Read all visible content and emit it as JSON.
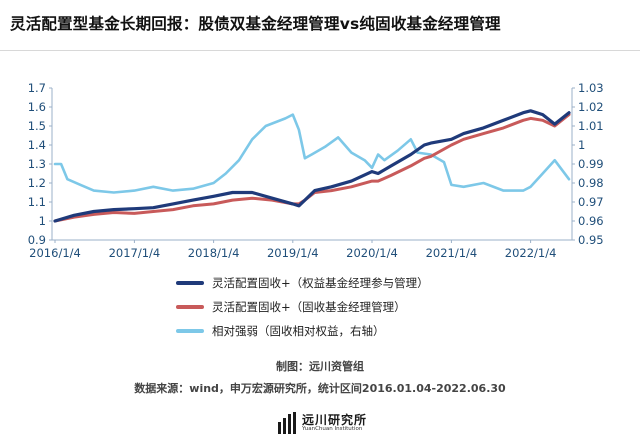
{
  "title": "灵活配置型基金长期回报：股债双基金经理管理vs纯固收基金经理管理",
  "credits": {
    "made_by": "制图：远川资管组",
    "source": "数据来源：wind，申万宏源研究所，统计区间2016.01.04-2022.06.30"
  },
  "logo": {
    "cn": "远川研究所",
    "en": "YuanChuan Institution"
  },
  "colors": {
    "series1": "#1f3a7a",
    "series2": "#c85a5a",
    "series3": "#7dc8e8",
    "axis": "#1f4e79"
  },
  "chart_data": {
    "type": "line",
    "x_ticks": [
      "2016/1/4",
      "2017/1/4",
      "2018/1/4",
      "2019/1/4",
      "2020/1/4",
      "2021/1/4",
      "2022/1/4"
    ],
    "x_range": [
      "2016-01-04",
      "2022-06-30"
    ],
    "y_left": {
      "ticks": [
        "0.9",
        "1",
        "1.1",
        "1.2",
        "1.3",
        "1.4",
        "1.5",
        "1.6",
        "1.7"
      ],
      "range": [
        0.9,
        1.7
      ]
    },
    "y_right": {
      "ticks": [
        "0.95",
        "0.96",
        "0.97",
        "0.98",
        "0.99",
        "1",
        "1.01",
        "1.02",
        "1.03"
      ],
      "range": [
        0.95,
        1.03
      ]
    },
    "grid": false,
    "legend_position": "bottom",
    "series": [
      {
        "name": "灵活配置固收+（权益基金经理参与管理）",
        "axis": "left",
        "points": [
          [
            "2016-01-04",
            1.0
          ],
          [
            "2016-04-01",
            1.03
          ],
          [
            "2016-07-01",
            1.05
          ],
          [
            "2016-10-01",
            1.06
          ],
          [
            "2017-01-04",
            1.065
          ],
          [
            "2017-04-01",
            1.07
          ],
          [
            "2017-07-01",
            1.09
          ],
          [
            "2017-10-01",
            1.11
          ],
          [
            "2018-01-04",
            1.13
          ],
          [
            "2018-04-01",
            1.15
          ],
          [
            "2018-07-01",
            1.15
          ],
          [
            "2018-10-01",
            1.12
          ],
          [
            "2019-01-04",
            1.09
          ],
          [
            "2019-02-01",
            1.08
          ],
          [
            "2019-03-01",
            1.11
          ],
          [
            "2019-04-15",
            1.16
          ],
          [
            "2019-07-01",
            1.18
          ],
          [
            "2019-10-01",
            1.21
          ],
          [
            "2020-01-04",
            1.26
          ],
          [
            "2020-02-01",
            1.25
          ],
          [
            "2020-04-01",
            1.29
          ],
          [
            "2020-07-01",
            1.35
          ],
          [
            "2020-09-01",
            1.4
          ],
          [
            "2020-10-01",
            1.41
          ],
          [
            "2021-01-04",
            1.43
          ],
          [
            "2021-03-01",
            1.46
          ],
          [
            "2021-06-01",
            1.49
          ],
          [
            "2021-09-01",
            1.53
          ],
          [
            "2021-12-01",
            1.57
          ],
          [
            "2022-01-04",
            1.58
          ],
          [
            "2022-03-01",
            1.56
          ],
          [
            "2022-04-25",
            1.51
          ],
          [
            "2022-06-30",
            1.57
          ]
        ]
      },
      {
        "name": "灵活配置固收+（固收基金经理管理）",
        "axis": "left",
        "points": [
          [
            "2016-01-04",
            1.0
          ],
          [
            "2016-04-01",
            1.02
          ],
          [
            "2016-07-01",
            1.035
          ],
          [
            "2016-10-01",
            1.045
          ],
          [
            "2017-01-04",
            1.04
          ],
          [
            "2017-04-01",
            1.05
          ],
          [
            "2017-07-01",
            1.06
          ],
          [
            "2017-10-01",
            1.08
          ],
          [
            "2018-01-04",
            1.09
          ],
          [
            "2018-04-01",
            1.11
          ],
          [
            "2018-07-01",
            1.12
          ],
          [
            "2018-10-01",
            1.11
          ],
          [
            "2019-01-04",
            1.09
          ],
          [
            "2019-02-01",
            1.09
          ],
          [
            "2019-03-01",
            1.11
          ],
          [
            "2019-04-15",
            1.15
          ],
          [
            "2019-07-01",
            1.16
          ],
          [
            "2019-10-01",
            1.18
          ],
          [
            "2020-01-04",
            1.21
          ],
          [
            "2020-02-01",
            1.21
          ],
          [
            "2020-04-01",
            1.24
          ],
          [
            "2020-07-01",
            1.29
          ],
          [
            "2020-09-01",
            1.33
          ],
          [
            "2020-10-01",
            1.34
          ],
          [
            "2021-01-04",
            1.4
          ],
          [
            "2021-03-01",
            1.43
          ],
          [
            "2021-06-01",
            1.46
          ],
          [
            "2021-09-01",
            1.49
          ],
          [
            "2021-12-01",
            1.53
          ],
          [
            "2022-01-04",
            1.54
          ],
          [
            "2022-03-01",
            1.53
          ],
          [
            "2022-04-25",
            1.5
          ],
          [
            "2022-06-30",
            1.56
          ]
        ]
      },
      {
        "name": "相对强弱（固收相对权益，右轴）",
        "axis": "right",
        "points": [
          [
            "2016-01-04",
            0.99
          ],
          [
            "2016-02-01",
            0.99
          ],
          [
            "2016-03-01",
            0.982
          ],
          [
            "2016-05-01",
            0.979
          ],
          [
            "2016-07-01",
            0.976
          ],
          [
            "2016-10-01",
            0.975
          ],
          [
            "2017-01-04",
            0.976
          ],
          [
            "2017-04-01",
            0.978
          ],
          [
            "2017-07-01",
            0.976
          ],
          [
            "2017-10-01",
            0.977
          ],
          [
            "2018-01-04",
            0.98
          ],
          [
            "2018-03-01",
            0.985
          ],
          [
            "2018-05-01",
            0.992
          ],
          [
            "2018-07-01",
            1.003
          ],
          [
            "2018-09-01",
            1.01
          ],
          [
            "2018-12-01",
            1.014
          ],
          [
            "2019-01-04",
            1.016
          ],
          [
            "2019-02-01",
            1.008
          ],
          [
            "2019-03-01",
            0.993
          ],
          [
            "2019-04-01",
            0.995
          ],
          [
            "2019-06-01",
            0.999
          ],
          [
            "2019-08-01",
            1.004
          ],
          [
            "2019-10-01",
            0.996
          ],
          [
            "2019-12-01",
            0.992
          ],
          [
            "2020-01-04",
            0.988
          ],
          [
            "2020-02-01",
            0.995
          ],
          [
            "2020-03-01",
            0.992
          ],
          [
            "2020-05-01",
            0.997
          ],
          [
            "2020-07-01",
            1.003
          ],
          [
            "2020-08-01",
            0.996
          ],
          [
            "2020-10-01",
            0.995
          ],
          [
            "2020-12-01",
            0.991
          ],
          [
            "2021-01-04",
            0.979
          ],
          [
            "2021-03-01",
            0.978
          ],
          [
            "2021-06-01",
            0.98
          ],
          [
            "2021-09-01",
            0.976
          ],
          [
            "2021-12-01",
            0.976
          ],
          [
            "2022-01-04",
            0.978
          ],
          [
            "2022-03-01",
            0.985
          ],
          [
            "2022-04-25",
            0.992
          ],
          [
            "2022-06-30",
            0.982
          ]
        ]
      }
    ]
  }
}
